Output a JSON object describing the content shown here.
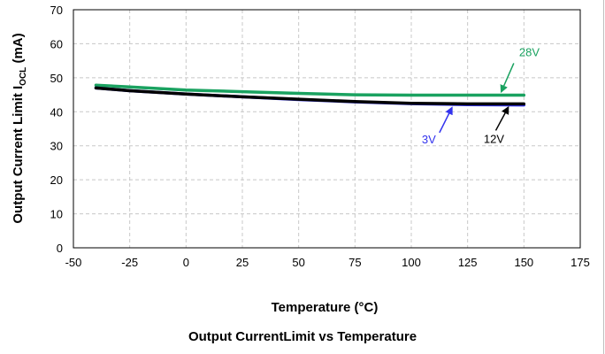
{
  "caption": "Output CurrentLimit vs Temperature",
  "chart_data": {
    "type": "line",
    "title": "",
    "xlabel": "Temperature (°C)",
    "ylabel_main": "Output Current Limit I",
    "ylabel_sub": "OCL",
    "ylabel_unit": " (mA)",
    "xlim": [
      -50,
      175
    ],
    "ylim": [
      0,
      70
    ],
    "xticks": [
      -50,
      -25,
      0,
      25,
      50,
      75,
      100,
      125,
      150,
      175
    ],
    "yticks": [
      0,
      10,
      20,
      30,
      40,
      50,
      60,
      70
    ],
    "grid": "both dashed",
    "legend": "none",
    "series": [
      {
        "name": "28V",
        "color": "#1aa260",
        "x": [
          -40,
          -25,
          0,
          25,
          50,
          75,
          100,
          125,
          150
        ],
        "y": [
          47.8,
          47.3,
          46.4,
          45.9,
          45.4,
          45.0,
          44.9,
          44.9,
          44.9
        ]
      },
      {
        "name": "3V",
        "color": "#3333ee",
        "x": [
          -40,
          -25,
          0,
          25,
          50,
          75,
          100,
          125,
          150
        ],
        "y": [
          47.0,
          46.2,
          45.2,
          44.4,
          43.6,
          42.9,
          42.4,
          42.1,
          42.0
        ]
      },
      {
        "name": "12V",
        "color": "#000000",
        "x": [
          -40,
          -25,
          0,
          25,
          50,
          75,
          100,
          125,
          150
        ],
        "y": [
          47.0,
          46.2,
          45.2,
          44.4,
          43.7,
          43.0,
          42.5,
          42.3,
          42.3
        ]
      }
    ],
    "annotations": [
      {
        "text": "28V",
        "series": "28V",
        "color": "#1aa260",
        "x_at": 140
      },
      {
        "text": "3V",
        "series": "3V",
        "color": "#3333ee",
        "x_at": 118
      },
      {
        "text": "12V",
        "series": "12V",
        "color": "#000000",
        "x_at": 143
      }
    ]
  }
}
